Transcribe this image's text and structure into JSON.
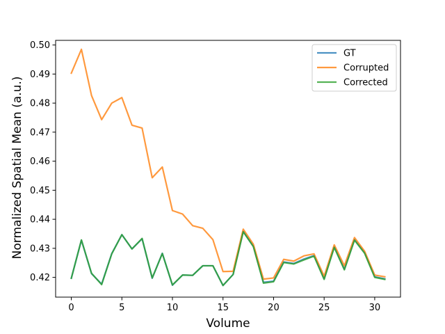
{
  "chart_data": {
    "type": "line",
    "title": "",
    "xlabel": "Volume",
    "ylabel": "Normalized Spatial Mean (a.u.)",
    "xlim": [
      -1.55,
      32.55
    ],
    "ylim": [
      0.4132,
      0.5016
    ],
    "xticks": [
      0,
      5,
      10,
      15,
      20,
      25,
      30
    ],
    "yticks": [
      0.42,
      0.43,
      0.44,
      0.45,
      0.46,
      0.47,
      0.48,
      0.49,
      0.5
    ],
    "grid": false,
    "legend_position": "top-right",
    "x": [
      0,
      1,
      2,
      3,
      4,
      5,
      6,
      7,
      8,
      9,
      10,
      11,
      12,
      13,
      14,
      15,
      16,
      17,
      18,
      19,
      20,
      21,
      22,
      23,
      24,
      25,
      26,
      27,
      28,
      29,
      30,
      31
    ],
    "series": [
      {
        "name": "GT",
        "color": "#1f77b4",
        "values": [
          0.4197,
          0.4328,
          0.4213,
          0.4177,
          0.4282,
          0.4347,
          0.4298,
          0.4333,
          0.4197,
          0.4283,
          0.4173,
          0.4208,
          0.4207,
          0.424,
          0.424,
          0.4172,
          0.421,
          0.4358,
          0.4307,
          0.4183,
          0.4187,
          0.4253,
          0.4248,
          0.4263,
          0.4275,
          0.4195,
          0.4305,
          0.4228,
          0.433,
          0.4285,
          0.4202,
          0.4195
        ]
      },
      {
        "name": "Corrupted",
        "color": "#ff7f0e",
        "values": [
          0.4903,
          0.4985,
          0.4826,
          0.4743,
          0.48,
          0.4819,
          0.4724,
          0.4714,
          0.4543,
          0.458,
          0.443,
          0.4418,
          0.4378,
          0.4369,
          0.433,
          0.422,
          0.4221,
          0.4366,
          0.4314,
          0.4194,
          0.4198,
          0.4262,
          0.4256,
          0.4274,
          0.4281,
          0.4204,
          0.4312,
          0.424,
          0.4337,
          0.429,
          0.4208,
          0.4202
        ]
      },
      {
        "name": "Corrected",
        "color": "#2ca02c",
        "values": [
          0.4197,
          0.4329,
          0.4214,
          0.4175,
          0.4281,
          0.4347,
          0.4298,
          0.4334,
          0.4198,
          0.4282,
          0.4174,
          0.4208,
          0.4207,
          0.424,
          0.424,
          0.4172,
          0.421,
          0.4357,
          0.4306,
          0.418,
          0.4185,
          0.4251,
          0.4246,
          0.426,
          0.4273,
          0.4193,
          0.4303,
          0.4226,
          0.4328,
          0.4283,
          0.42,
          0.4193
        ]
      }
    ]
  }
}
